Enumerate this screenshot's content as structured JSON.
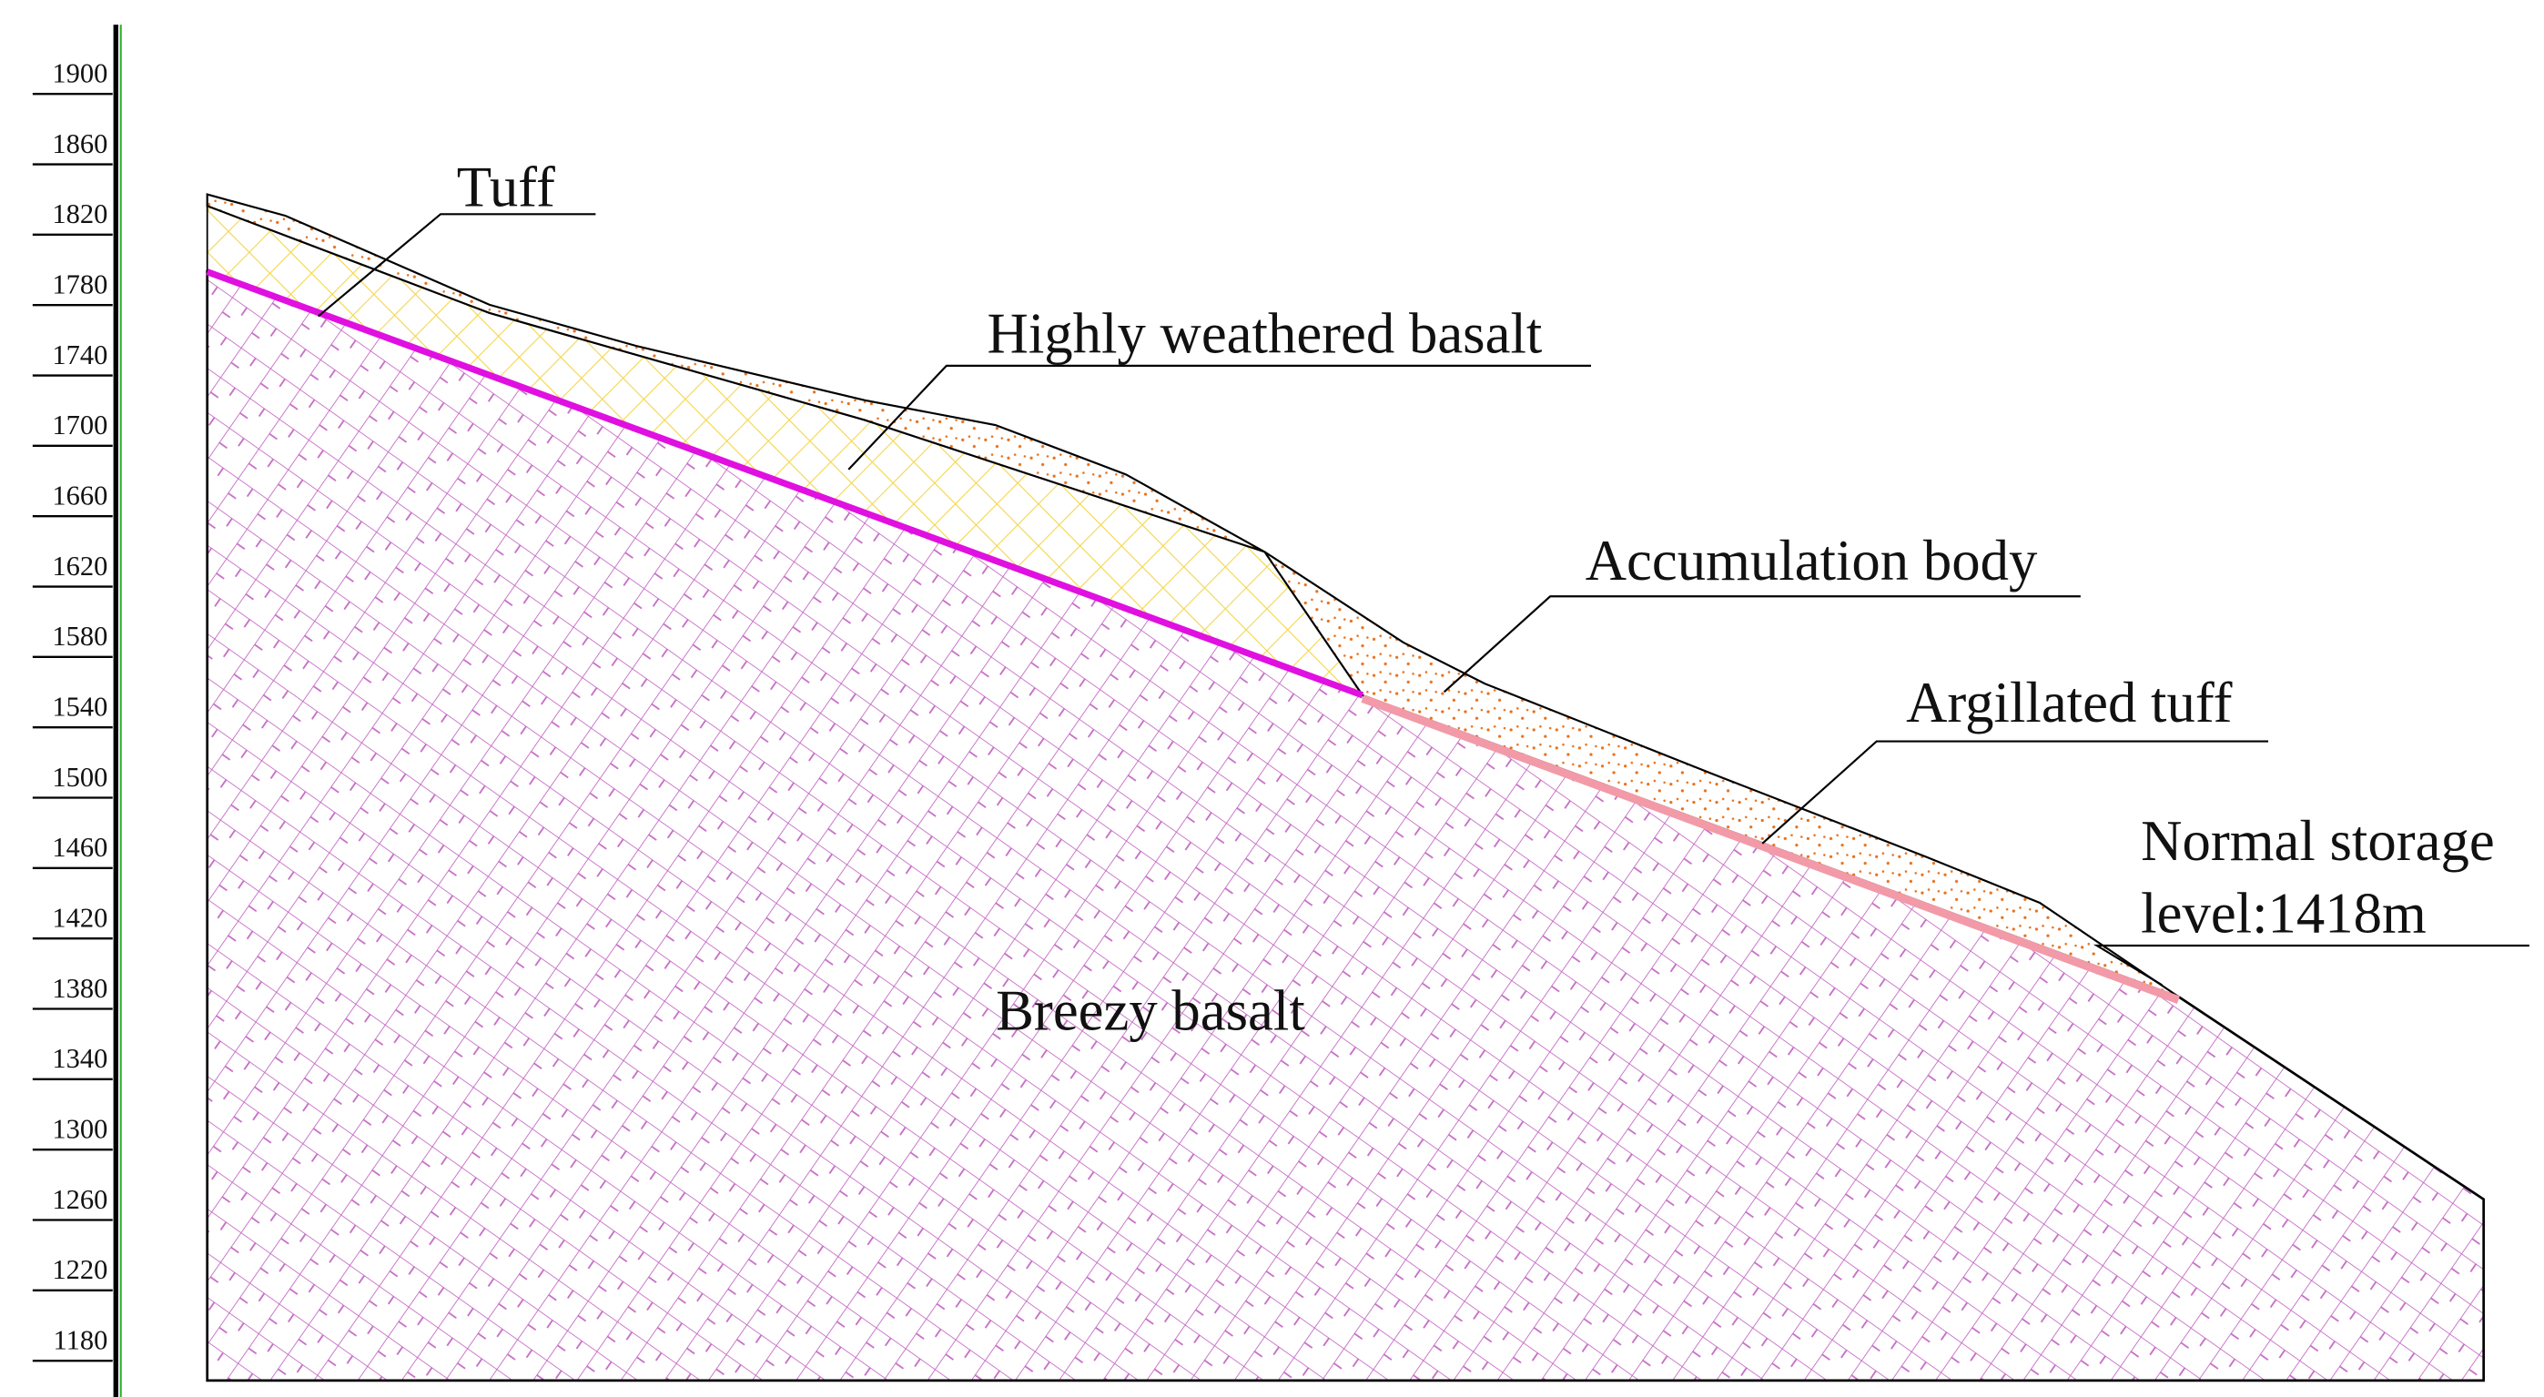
{
  "elevation_ticks": [
    1900,
    1860,
    1820,
    1780,
    1740,
    1700,
    1660,
    1620,
    1580,
    1540,
    1500,
    1460,
    1420,
    1380,
    1340,
    1300,
    1260,
    1220,
    1180
  ],
  "labels": {
    "tuff": "Tuff",
    "highly_weathered_basalt": "Highly weathered basalt",
    "accumulation_body": "Accumulation body",
    "argillated_tuff": "Argillated tuff",
    "storage_line1": "Normal storage",
    "storage_line2": "level:1418m",
    "breezy_basalt": "Breezy basalt"
  }
}
